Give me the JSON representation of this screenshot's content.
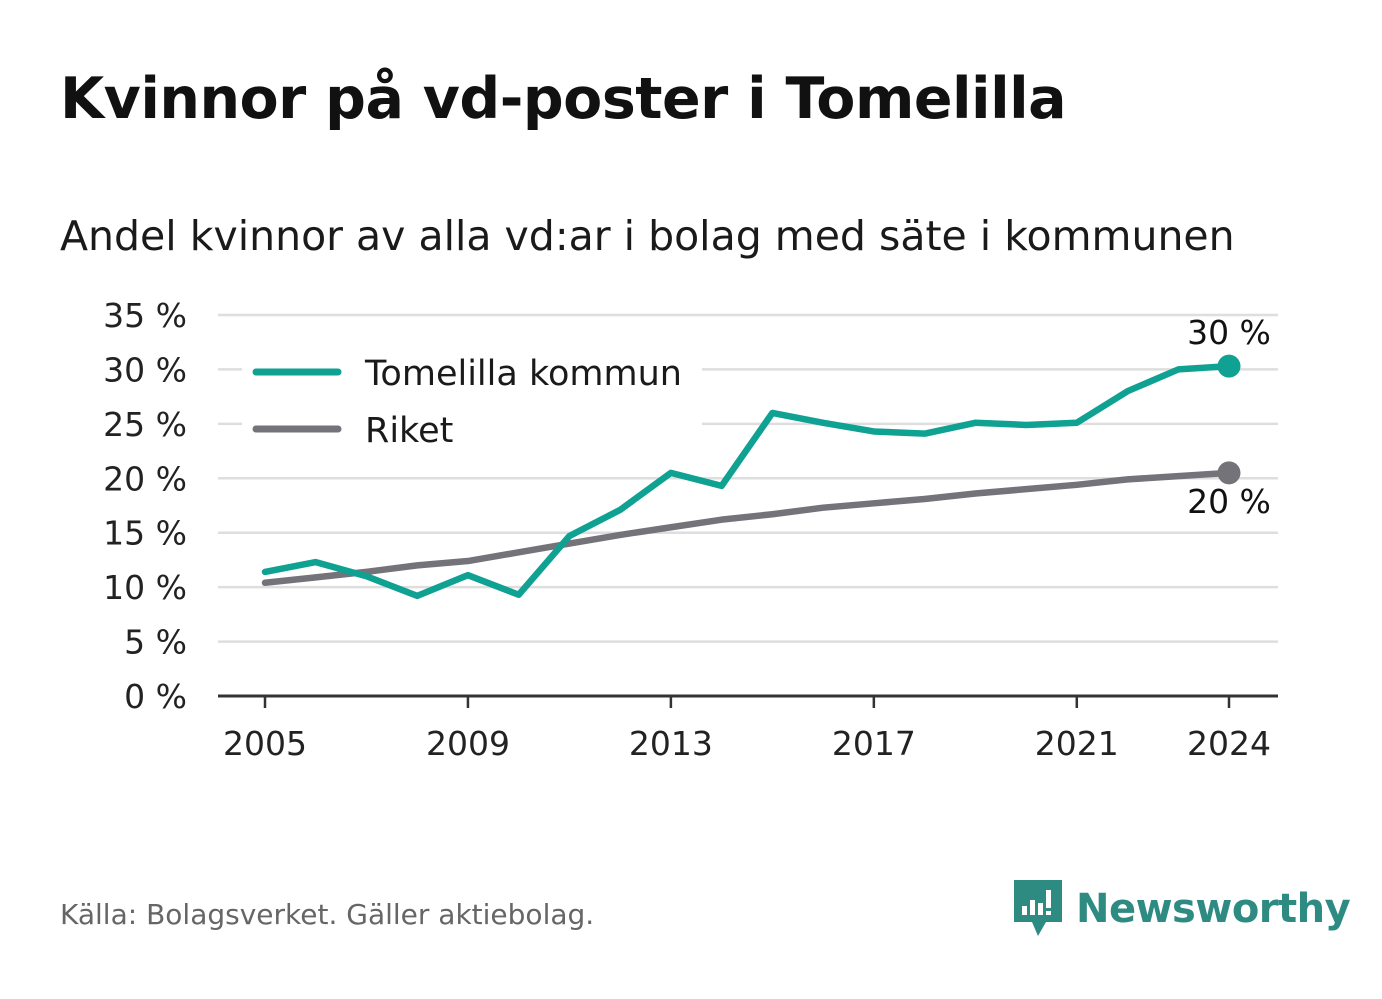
{
  "title": "Kvinnor på vd-poster i Tomelilla",
  "subtitle": "Andel kvinnor av alla vd:ar i bolag med säte i kommunen",
  "source": "Källa: Bolagsverket. Gäller aktiebolag.",
  "brand": "Newsworthy",
  "colors": {
    "tomelilla": "#0fa192",
    "riket": "#75737a",
    "grid": "#dedede",
    "axis": "#333333",
    "brand": "#2e8b82"
  },
  "chart_data": {
    "type": "line",
    "x": [
      2005,
      2006,
      2007,
      2008,
      2009,
      2010,
      2011,
      2012,
      2013,
      2014,
      2015,
      2016,
      2017,
      2018,
      2019,
      2020,
      2021,
      2022,
      2023,
      2024
    ],
    "series": [
      {
        "name": "Tomelilla kommun",
        "color": "#0fa192",
        "values": [
          11.4,
          12.3,
          11.0,
          9.2,
          11.1,
          9.3,
          14.7,
          17.1,
          20.5,
          19.3,
          26.0,
          25.1,
          24.3,
          24.1,
          25.1,
          24.9,
          25.1,
          28.0,
          30.0,
          30.3
        ],
        "end_label": "30 %"
      },
      {
        "name": "Riket",
        "color": "#75737a",
        "values": [
          10.4,
          10.9,
          11.4,
          12.0,
          12.4,
          13.2,
          14.0,
          14.8,
          15.5,
          16.2,
          16.7,
          17.3,
          17.7,
          18.1,
          18.6,
          19.0,
          19.4,
          19.9,
          20.2,
          20.5
        ],
        "end_label": "20 %"
      }
    ],
    "xticks": [
      "2005",
      "2009",
      "2013",
      "2017",
      "2021",
      "2024"
    ],
    "yticks": [
      "0 %",
      "5 %",
      "10 %",
      "15 %",
      "20 %",
      "25 %",
      "30 %",
      "35 %"
    ],
    "ylim": [
      0,
      35
    ],
    "xlim": [
      2005,
      2024
    ],
    "grid": true,
    "legend_position": "top-left"
  }
}
